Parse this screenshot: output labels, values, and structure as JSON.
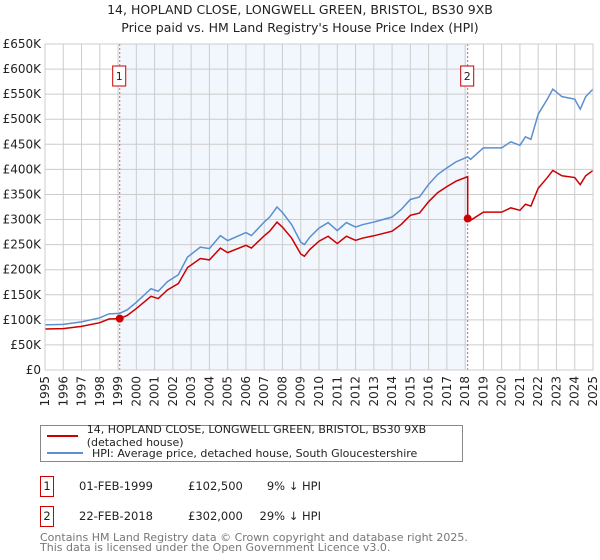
{
  "title": "14, HOPLAND CLOSE, LONGWELL GREEN, BRISTOL, BS30 9XB",
  "subtitle": "Price paid vs. HM Land Registry's House Price Index (HPI)",
  "chart_data": {
    "type": "line",
    "title": "14, HOPLAND CLOSE, LONGWELL GREEN, BRISTOL, BS30 9XB",
    "subtitle": "Price paid vs. HM Land Registry's House Price Index (HPI)",
    "xlim": [
      1995,
      2025
    ],
    "ylim": [
      0,
      650000
    ],
    "yticks": [
      0,
      50000,
      100000,
      150000,
      200000,
      250000,
      300000,
      350000,
      400000,
      450000,
      500000,
      550000,
      600000,
      650000
    ],
    "ytick_labels": [
      "£0",
      "£50K",
      "£100K",
      "£150K",
      "£200K",
      "£250K",
      "£300K",
      "£350K",
      "£400K",
      "£450K",
      "£500K",
      "£550K",
      "£600K",
      "£650K"
    ],
    "xticks": [
      1995,
      1996,
      1997,
      1998,
      1999,
      2000,
      2001,
      2002,
      2003,
      2004,
      2005,
      2006,
      2007,
      2008,
      2009,
      2010,
      2011,
      2012,
      2013,
      2014,
      2015,
      2016,
      2017,
      2018,
      2019,
      2020,
      2021,
      2022,
      2023,
      2024,
      2025
    ],
    "grid": true,
    "colors": {
      "property": "#cc0000",
      "hpi": "#5b8fd0",
      "shade": "#f2f6fd"
    },
    "series": [
      {
        "name": "HPI: Average price, detached house, South Gloucestershire",
        "x": [
          1995,
          1996,
          1997,
          1998,
          1998.5,
          1999.09,
          1999.5,
          2000,
          2000.8,
          2001.2,
          2001.7,
          2002.3,
          2002.8,
          2003.5,
          2004,
          2004.6,
          2005,
          2006,
          2006.3,
          2007,
          2007.3,
          2007.7,
          2008,
          2008.5,
          2009,
          2009.2,
          2009.5,
          2010,
          2010.5,
          2011,
          2011.5,
          2012,
          2012.4,
          2013,
          2014,
          2014.5,
          2015,
          2015.5,
          2016,
          2016.5,
          2017,
          2017.5,
          2018.14,
          2018.3,
          2019,
          2020,
          2020.5,
          2021,
          2021.3,
          2021.6,
          2022,
          2022.5,
          2022.8,
          2023.3,
          2024,
          2024.3,
          2024.6,
          2025
        ],
        "y": [
          90000,
          91000,
          96000,
          104000,
          112000,
          113000,
          120000,
          135000,
          162000,
          157000,
          176000,
          190000,
          225000,
          245000,
          242000,
          268000,
          258000,
          274000,
          268000,
          295000,
          305000,
          325000,
          314000,
          290000,
          255000,
          250000,
          265000,
          283000,
          294000,
          278000,
          294000,
          285000,
          290000,
          295000,
          305000,
          320000,
          340000,
          345000,
          370000,
          390000,
          403000,
          415000,
          425000,
          420000,
          443000,
          443000,
          455000,
          448000,
          465000,
          460000,
          510000,
          540000,
          560000,
          545000,
          540000,
          520000,
          545000,
          560000
        ]
      },
      {
        "name": "14, HOPLAND CLOSE, LONGWELL GREEN, BRISTOL, BS30 9XB (detached house)",
        "sales": [
          {
            "x": 1999.09,
            "y": 102500
          },
          {
            "x": 2018.14,
            "y": 302000
          }
        ]
      }
    ],
    "annotations": [
      {
        "label": "1",
        "x": 1999.09
      },
      {
        "label": "2",
        "x": 2018.14
      }
    ]
  },
  "legend": {
    "property": "14, HOPLAND CLOSE, LONGWELL GREEN, BRISTOL, BS30 9XB (detached house)",
    "hpi": "HPI: Average price, detached house, South Gloucestershire"
  },
  "transactions": [
    {
      "num": "1",
      "date": "01-FEB-1999",
      "price": "£102,500",
      "hpi": "9% ↓ HPI"
    },
    {
      "num": "2",
      "date": "22-FEB-2018",
      "price": "£302,000",
      "hpi": "29% ↓ HPI"
    }
  ],
  "footer": [
    "Contains HM Land Registry data © Crown copyright and database right 2025.",
    "This data is licensed under the Open Government Licence v3.0."
  ]
}
